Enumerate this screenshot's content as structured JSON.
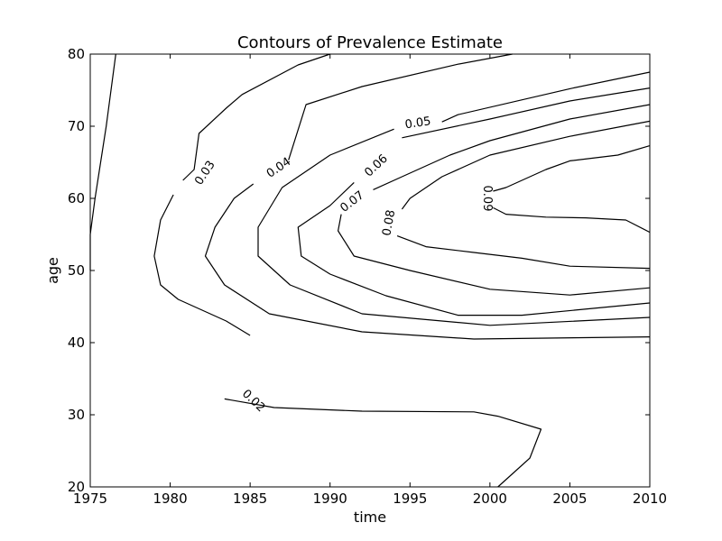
{
  "chart_data": {
    "type": "contour",
    "title": "Contours of Prevalence Estimate",
    "xlabel": "time",
    "ylabel": "age",
    "xlim": [
      1975,
      2010
    ],
    "ylim": [
      20,
      80
    ],
    "xticks": [
      1975,
      1980,
      1985,
      1990,
      1995,
      2000,
      2005,
      2010
    ],
    "yticks": [
      20,
      30,
      40,
      50,
      60,
      70,
      80
    ],
    "grid": false,
    "levels": [
      {
        "value": "0.02",
        "paths": [
          [
            [
              1976.6,
              80
            ],
            [
              1976.0,
              70
            ],
            [
              1975.3,
              60
            ],
            [
              1975.0,
              55
            ],
            [
              1975.0,
              50
            ]
          ],
          [
            [
              1983.4,
              32.2
            ],
            [
              1986.5,
              31.0
            ],
            [
              1992,
              30.5
            ],
            [
              1999,
              30.4
            ],
            [
              2000.5,
              29.8
            ],
            [
              2003.2,
              28.0
            ],
            [
              2002.5,
              24
            ],
            [
              2000.5,
              20
            ]
          ]
        ],
        "label_at": [
          1985.2,
          31.9
        ]
      },
      {
        "value": "0.03",
        "paths": [
          [
            [
              1990,
              80
            ],
            [
              1988,
              78.5
            ],
            [
              1984.5,
              74.4
            ],
            [
              1983.5,
              72.5
            ],
            [
              1981.8,
              69
            ],
            [
              1981.5,
              64
            ],
            [
              1980.8,
              62.5
            ]
          ],
          [
            [
              1980.2,
              60.5
            ],
            [
              1979.4,
              57
            ],
            [
              1979.0,
              52
            ],
            [
              1979.4,
              48
            ],
            [
              1980.5,
              46
            ],
            [
              1983.5,
              43
            ],
            [
              1985,
              41
            ]
          ]
        ],
        "label_at": [
          1982.2,
          63.5
        ]
      },
      {
        "value": "0.04",
        "paths": [
          [
            [
              2001.4,
              80
            ],
            [
              1998,
              78.6
            ],
            [
              1992,
              75.5
            ],
            [
              1988.5,
              73
            ],
            [
              1987.4,
              65.3
            ]
          ],
          [
            [
              1985.2,
              62
            ],
            [
              1984,
              60
            ],
            [
              1982.8,
              56
            ],
            [
              1982.2,
              52
            ],
            [
              1983.4,
              48
            ],
            [
              1986.2,
              44
            ],
            [
              1992,
              41.5
            ],
            [
              1999,
              40.5
            ],
            [
              2010,
              40.8
            ]
          ]
        ],
        "label_at": [
          1986.8,
          64.2
        ]
      },
      {
        "value": "0.05",
        "paths": [
          [
            [
              2010,
              77.5
            ],
            [
              2005,
              75.2
            ],
            [
              1998,
              71.6
            ],
            [
              1997,
              70.6
            ]
          ],
          [
            [
              1994,
              69.6
            ],
            [
              1990,
              66
            ],
            [
              1987,
              61.5
            ],
            [
              1985.5,
              56
            ],
            [
              1985.5,
              52
            ],
            [
              1987.5,
              48
            ],
            [
              1992,
              44
            ],
            [
              2000,
              42.4
            ],
            [
              2010,
              43.5
            ]
          ]
        ],
        "label_at": [
          1995.5,
          70.4
        ]
      },
      {
        "value": "0.06",
        "paths": [
          [
            [
              2010,
              75.3
            ],
            [
              2005,
              73.5
            ],
            [
              2000,
              71
            ],
            [
              1994.5,
              68.4
            ]
          ],
          [
            [
              1991.5,
              62.2
            ],
            [
              1990,
              59
            ],
            [
              1988,
              56
            ],
            [
              1988.2,
              52
            ],
            [
              1990,
              49.5
            ],
            [
              1993.5,
              46.5
            ],
            [
              1998,
              43.8
            ],
            [
              2002,
              43.8
            ],
            [
              2010,
              45.5
            ]
          ]
        ],
        "label_at": [
          1992.9,
          64.5
        ]
      },
      {
        "value": "0.07",
        "paths": [
          [
            [
              2010,
              73
            ],
            [
              2005,
              71
            ],
            [
              2000,
              68
            ],
            [
              1997.5,
              66
            ],
            [
              1994.5,
              63
            ],
            [
              1992.7,
              61.2
            ]
          ],
          [
            [
              1990.7,
              57.8
            ],
            [
              1990.5,
              55.5
            ],
            [
              1991.5,
              52
            ],
            [
              1995,
              50
            ],
            [
              2000,
              47.4
            ],
            [
              2005,
              46.6
            ],
            [
              2010,
              47.6
            ]
          ]
        ],
        "label_at": [
          1991.4,
          59.5
        ]
      },
      {
        "value": "0.08",
        "paths": [
          [
            [
              2010,
              70.7
            ],
            [
              2005,
              68.6
            ],
            [
              2000,
              66
            ],
            [
              1997,
              63
            ],
            [
              1995,
              60
            ],
            [
              1994.5,
              58.5
            ]
          ],
          [
            [
              1994.2,
              54.8
            ],
            [
              1996,
              53.3
            ],
            [
              1999,
              52.5
            ],
            [
              2002,
              51.7
            ],
            [
              2005,
              50.6
            ],
            [
              2010,
              50.3
            ]
          ]
        ],
        "label_at": [
          1993.7,
          56.6
        ]
      },
      {
        "value": "0.09",
        "paths": [
          [
            [
              2010,
              67.3
            ],
            [
              2008,
              66
            ],
            [
              2005,
              65.2
            ],
            [
              2003.5,
              64
            ],
            [
              2001,
              61.5
            ],
            [
              2000.2,
              61
            ]
          ],
          [
            [
              2000.2,
              58.7
            ],
            [
              2001,
              57.8
            ],
            [
              2003.5,
              57.4
            ],
            [
              2006,
              57.3
            ],
            [
              2008.5,
              57
            ],
            [
              2010,
              55.3
            ]
          ]
        ],
        "label_at": [
          1999.8,
          60
        ]
      }
    ]
  }
}
